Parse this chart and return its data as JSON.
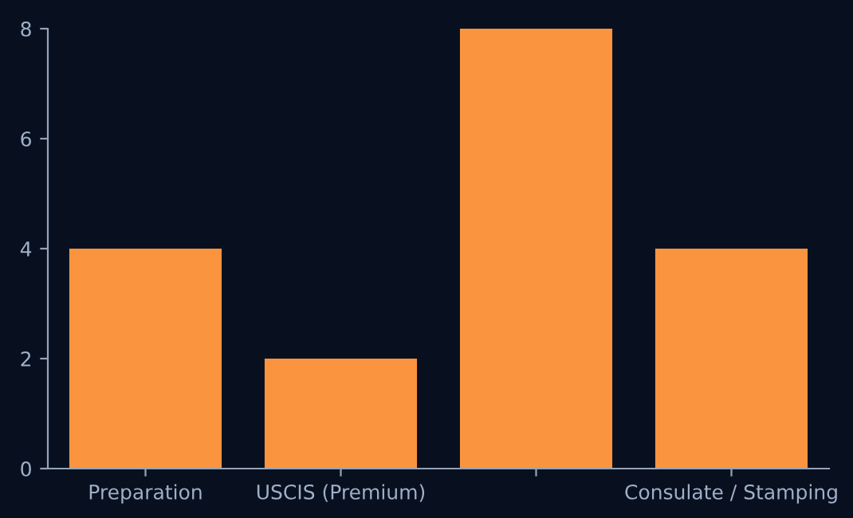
{
  "chart_data": {
    "type": "bar",
    "categories": [
      "Preparation",
      "USCIS (Premium)",
      null,
      "Consulate / Stamping"
    ],
    "values": [
      4,
      2,
      8,
      4
    ],
    "color": "#fb943f",
    "ylim": [
      0,
      8
    ],
    "yticks": [
      0,
      2,
      4,
      6,
      8
    ],
    "grid": false,
    "legend": false
  }
}
